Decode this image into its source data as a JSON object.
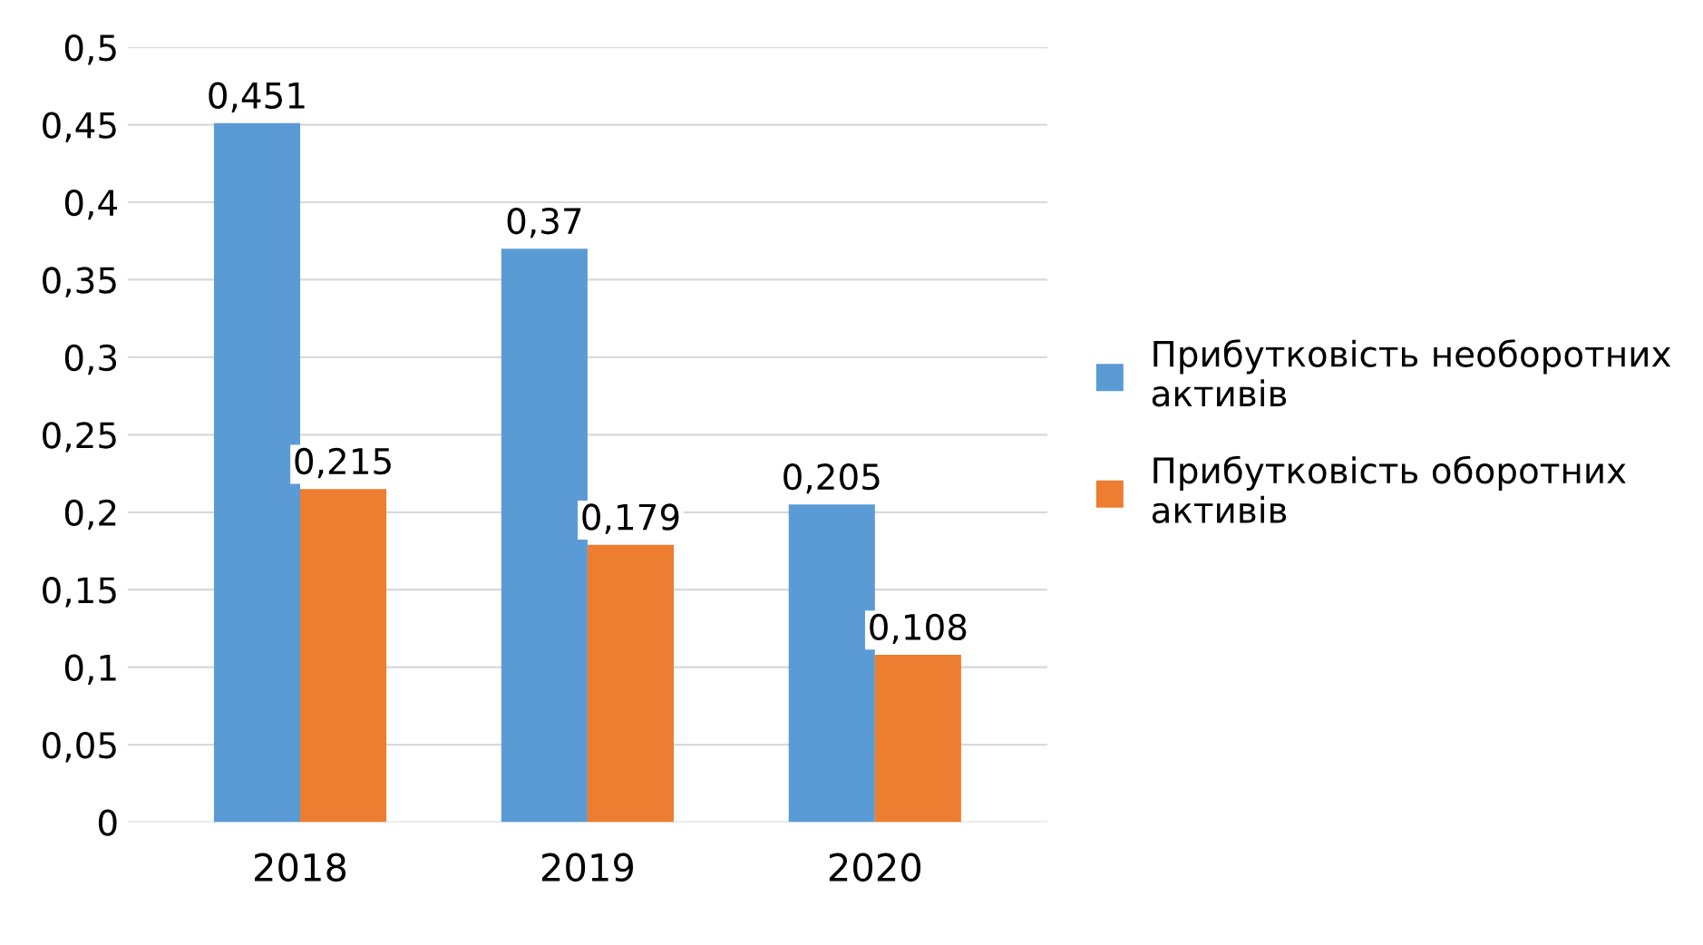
{
  "chart_data": {
    "type": "bar",
    "categories": [
      "2018",
      "2019",
      "2020"
    ],
    "series": [
      {
        "name": "Прибутковість необоротних\nактивів",
        "color": "#5b9bd5",
        "values": [
          0.451,
          0.37,
          0.205
        ],
        "value_labels": [
          "0,451",
          "0,37",
          "0,205"
        ]
      },
      {
        "name": "Прибутковість оборотних\nактивів",
        "color": "#ed7d31",
        "values": [
          0.215,
          0.179,
          0.108
        ],
        "value_labels": [
          "0,215",
          "0,179",
          "0,108"
        ]
      }
    ],
    "ylim": [
      0,
      0.5
    ],
    "yticks": [
      {
        "value": 0,
        "label": "0"
      },
      {
        "value": 0.05,
        "label": "0,05"
      },
      {
        "value": 0.1,
        "label": "0,1"
      },
      {
        "value": 0.15,
        "label": "0,15"
      },
      {
        "value": 0.2,
        "label": "0,2"
      },
      {
        "value": 0.25,
        "label": "0,25"
      },
      {
        "value": 0.3,
        "label": "0,3"
      },
      {
        "value": 0.35,
        "label": "0,35"
      },
      {
        "value": 0.4,
        "label": "0,4"
      },
      {
        "value": 0.45,
        "label": "0,45"
      },
      {
        "value": 0.5,
        "label": "0,5"
      }
    ],
    "grid": "y",
    "legend": "right"
  }
}
